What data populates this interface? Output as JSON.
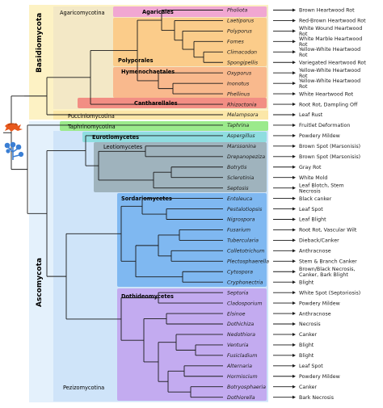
{
  "diagram": {
    "phyla": [
      {
        "label": "Basidiomycota",
        "color": "#d8a227"
      },
      {
        "label": "Ascomycota",
        "color": "#3f8fd6"
      }
    ],
    "subphyla": [
      {
        "label": "Agaricomycotina",
        "color": "#7a3d00"
      },
      {
        "label": "Pucciniomycotina",
        "color": "#c8a42e"
      },
      {
        "label": "Taphrinomycotina",
        "color": "#1e8f1e"
      },
      {
        "label": "Pezizomycotina",
        "color": "#1f4fb0"
      }
    ],
    "classes": [
      {
        "label": "Agaricales",
        "color": "#a0116b"
      },
      {
        "label": "Polyporales",
        "color": "#c77700"
      },
      {
        "label": "Hymenochaetales",
        "color": "#c8440a"
      },
      {
        "label": "Cantharellales",
        "color": "#b0101a"
      },
      {
        "label": "Eurotiomycetes",
        "color": "#0f6a6a"
      },
      {
        "label": "Leotiomycetes",
        "color": "#37474f"
      },
      {
        "label": "Sordariomycetes",
        "color": "#0b3f8a"
      },
      {
        "label": "Dothideomycetes",
        "color": "#5b1a9e"
      }
    ],
    "taxa": [
      {
        "genus": "Pholiota",
        "disease": "Brown Heartwood Rot"
      },
      {
        "genus": "Laetiporus",
        "disease": "Red-Brown Heartwood Rot"
      },
      {
        "genus": "Polyporus",
        "disease": "White Wound Heartwood Rot"
      },
      {
        "genus": "Fomes",
        "disease": "White Marble Heartwood Rot"
      },
      {
        "genus": "Climacodon",
        "disease": "Yellow-White Heartwood Rot"
      },
      {
        "genus": "Spongipellis",
        "disease": "Variegated Heartwood Rot"
      },
      {
        "genus": "Oxyporus",
        "disease": "Yellow-White Heartwood Rot"
      },
      {
        "genus": "Inonotus",
        "disease": "Yellow-White Heartwood Rot"
      },
      {
        "genus": "Phellinus",
        "disease": "White Heartwood Rot"
      },
      {
        "genus": "Rhizoctonia",
        "disease": "Root Rot, Dampling Off"
      },
      {
        "genus": "Melampsora",
        "disease": "Leaf Rust"
      },
      {
        "genus": "Taphrina",
        "disease": "Fruitlet Deformation"
      },
      {
        "genus": "Aspergillus",
        "disease": "Powdery Mildew"
      },
      {
        "genus": "Marssonina",
        "disease": "Brown Spot (Marsonisis)"
      },
      {
        "genus": "Drepanopeziza",
        "disease": "Brown Spot (Marsonisis)"
      },
      {
        "genus": "Botrytis",
        "disease": "Gray Rot"
      },
      {
        "genus": "Sclerotinia",
        "disease": "White Mold"
      },
      {
        "genus": "Septosis",
        "disease": "Leaf Blotch, Stem Necrosis"
      },
      {
        "genus": "Entoleuca",
        "disease": "Black canker"
      },
      {
        "genus": "Pestalotiopsis",
        "disease": "Leaf Spot"
      },
      {
        "genus": "Nigrospora",
        "disease": "Leaf Blight"
      },
      {
        "genus": "Fusarium",
        "disease": "Root Rot, Vascular Wilt"
      },
      {
        "genus": "Tubercularia",
        "disease": "Dieback/Canker"
      },
      {
        "genus": "Colletotrichum",
        "disease": "Anthracnose"
      },
      {
        "genus": "Plectosphaerella",
        "disease": "Stem & Branch Canker"
      },
      {
        "genus": "Cytospora",
        "disease": "Brown/Black Necrosis, Canker, Bark Blight"
      },
      {
        "genus": "Cryphonectria",
        "disease": "Blight"
      },
      {
        "genus": "Septoria",
        "disease": "White Spot (Septoriosis)"
      },
      {
        "genus": "Cladosporium",
        "disease": "Powdery Mildew"
      },
      {
        "genus": "Elsinoe",
        "disease": "Anthracnose"
      },
      {
        "genus": "Dothichiza",
        "disease": "Necrosis"
      },
      {
        "genus": "Nedothiora",
        "disease": "Canker"
      },
      {
        "genus": "Venturia",
        "disease": "Blight"
      },
      {
        "genus": "Fusicladium",
        "disease": "Blight"
      },
      {
        "genus": "Alternaria",
        "disease": "Leaf Spot"
      },
      {
        "genus": "Hormiscium",
        "disease": "Powdery Mildew"
      },
      {
        "genus": "Botryosphaeria",
        "disease": "Canker"
      },
      {
        "genus": "Dothiorella",
        "disease": "Bark Necrosis"
      }
    ],
    "icons": {
      "basidio": "mushroom-icon",
      "asco": "conidiophore-icon"
    },
    "line_color": "#1a1a1a"
  }
}
